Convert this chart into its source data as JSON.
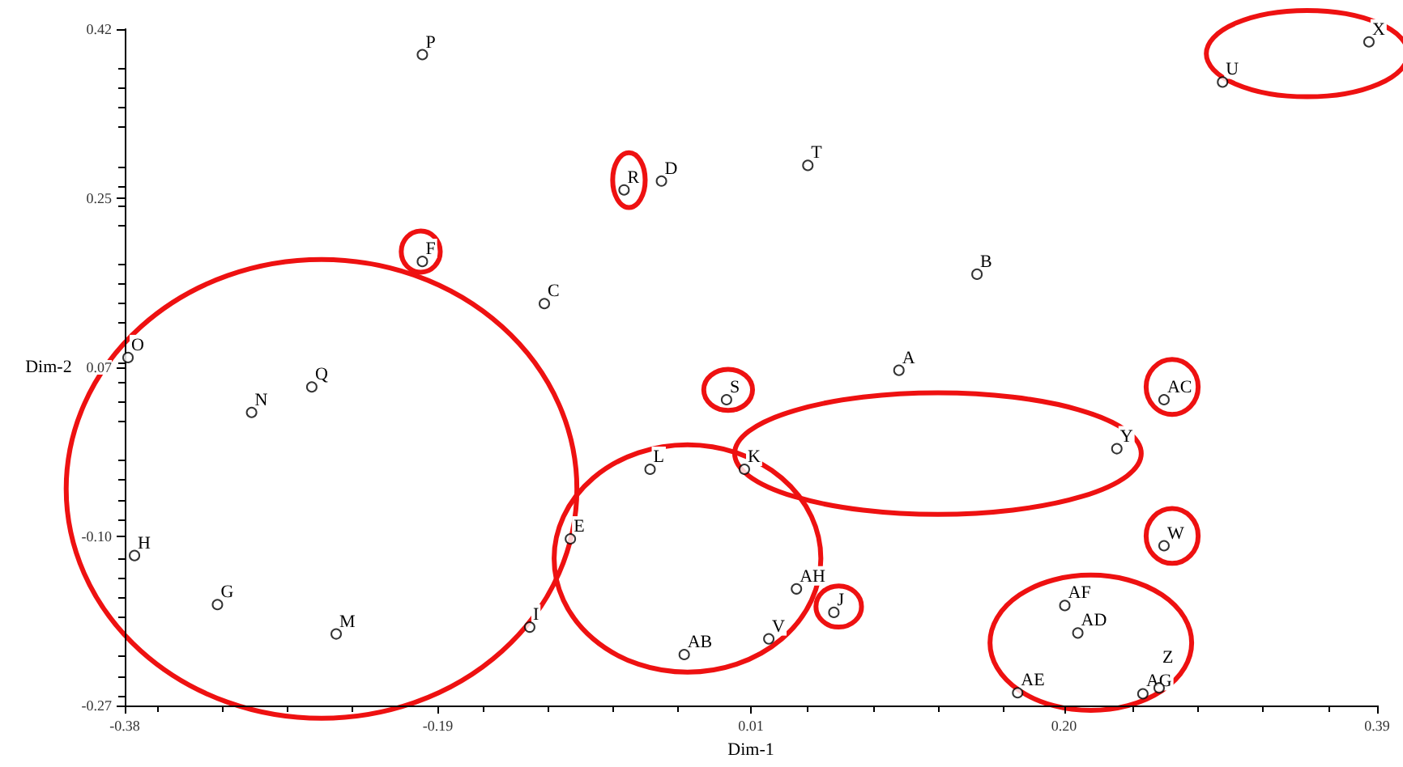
{
  "chart_data": {
    "type": "scatter",
    "xlabel": "Dim-1",
    "ylabel": "Dim-2",
    "marker": "circle",
    "grid": false,
    "xlim": [
      -0.38,
      0.39
    ],
    "xticks": [
      -0.38,
      {
        "value": -0.1875,
        "label": "-0.19"
      },
      {
        "value": 0.005,
        "label": "0.01"
      },
      {
        "value": 0.1975,
        "label": "0.20"
      },
      0.39
    ],
    "ylim": [
      -0.27,
      0.42
    ],
    "yticks": [
      -0.27,
      {
        "value": -0.0975,
        "label": "-0.10"
      },
      {
        "value": 0.075,
        "label": "0.07"
      },
      {
        "value": 0.2475,
        "label": "0.25"
      },
      0.42
    ],
    "series": [
      {
        "color": "#000000",
        "x": [
          -0.197,
          -0.073,
          -0.05,
          -0.197,
          -0.122,
          -0.378,
          -0.265,
          -0.302,
          -0.374,
          -0.323,
          -0.25,
          -0.057,
          -0.106,
          -0.131,
          -0.036,
          -0.01,
          0.001,
          0.096,
          0.04,
          0.144,
          0.295,
          0.385,
          0.23,
          0.259,
          0.259,
          0.033,
          0.056,
          0.016,
          0.198,
          0.206,
          0.169,
          0.246,
          0.256
        ],
        "values": [
          0.394,
          0.256,
          0.265,
          0.183,
          0.14,
          0.085,
          0.055,
          0.029,
          -0.117,
          -0.167,
          -0.197,
          -0.029,
          -0.1,
          -0.19,
          -0.218,
          0.042,
          -0.029,
          0.072,
          0.281,
          0.17,
          0.366,
          0.407,
          -0.008,
          0.042,
          -0.107,
          -0.151,
          -0.175,
          -0.202,
          -0.168,
          -0.196,
          -0.257,
          -0.258,
          -0.252
        ]
      }
    ],
    "annotations": [
      {
        "text": "P",
        "x": -0.197,
        "y": 0.394
      },
      {
        "text": "R",
        "x": -0.073,
        "y": 0.256
      },
      {
        "text": "D",
        "x": -0.05,
        "y": 0.265
      },
      {
        "text": "F",
        "x": -0.197,
        "y": 0.183
      },
      {
        "text": "C",
        "x": -0.122,
        "y": 0.14
      },
      {
        "text": "O",
        "x": -0.378,
        "y": 0.085
      },
      {
        "text": "Q",
        "x": -0.265,
        "y": 0.055
      },
      {
        "text": "N",
        "x": -0.302,
        "y": 0.029
      },
      {
        "text": "H",
        "x": -0.374,
        "y": -0.117
      },
      {
        "text": "G",
        "x": -0.323,
        "y": -0.167
      },
      {
        "text": "M",
        "x": -0.25,
        "y": -0.197
      },
      {
        "text": "L",
        "x": -0.057,
        "y": -0.029
      },
      {
        "text": "E",
        "x": -0.106,
        "y": -0.1
      },
      {
        "text": "I",
        "x": -0.131,
        "y": -0.19
      },
      {
        "text": "AB",
        "x": -0.036,
        "y": -0.218
      },
      {
        "text": "S",
        "x": -0.01,
        "y": 0.042
      },
      {
        "text": "K",
        "x": 0.001,
        "y": -0.029
      },
      {
        "text": "A",
        "x": 0.096,
        "y": 0.072
      },
      {
        "text": "T",
        "x": 0.04,
        "y": 0.281
      },
      {
        "text": "B",
        "x": 0.144,
        "y": 0.17
      },
      {
        "text": "U",
        "x": 0.295,
        "y": 0.366
      },
      {
        "text": "X",
        "x": 0.385,
        "y": 0.407
      },
      {
        "text": "Y",
        "x": 0.23,
        "y": -0.008
      },
      {
        "text": "AC",
        "x": 0.259,
        "y": 0.042
      },
      {
        "text": "W",
        "x": 0.259,
        "y": -0.107
      },
      {
        "text": "AH",
        "x": 0.033,
        "y": -0.151
      },
      {
        "text": "J",
        "x": 0.056,
        "y": -0.175
      },
      {
        "text": "V",
        "x": 0.016,
        "y": -0.202
      },
      {
        "text": "AF",
        "x": 0.198,
        "y": -0.168
      },
      {
        "text": "AD",
        "x": 0.206,
        "y": -0.196
      },
      {
        "text": "AE",
        "x": 0.169,
        "y": -0.257
      },
      {
        "text": "AG",
        "x": 0.246,
        "y": -0.258
      },
      {
        "text": "Z",
        "x": 0.256,
        "y": -0.252
      }
    ]
  }
}
